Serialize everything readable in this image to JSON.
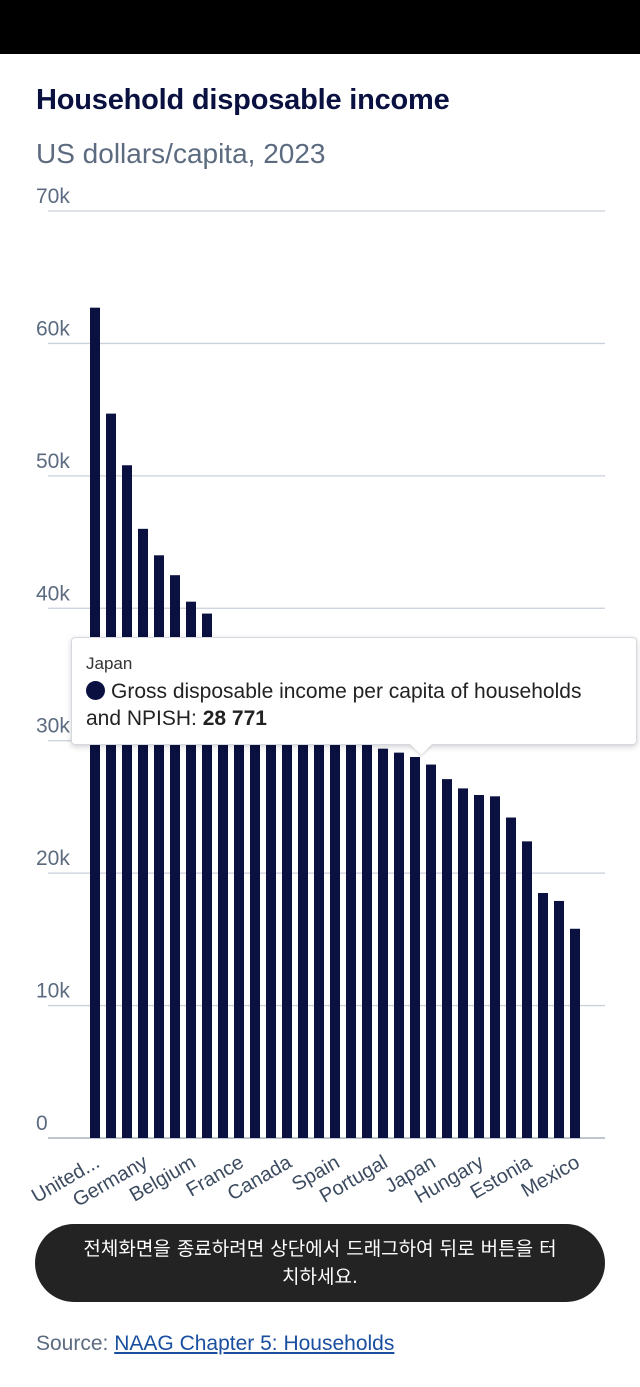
{
  "page": {
    "title": "Household disposable income",
    "subtitle": "US dollars/capita, 2023"
  },
  "chart_data": {
    "type": "bar",
    "title": "Household disposable income",
    "subtitle": "US dollars/capita, 2023",
    "xlabel": "",
    "ylabel": "",
    "ylim": [
      0,
      70000
    ],
    "yticks": [
      0,
      10000,
      20000,
      30000,
      40000,
      50000,
      60000,
      70000
    ],
    "ytick_labels": [
      "0",
      "10k",
      "20k",
      "30k",
      "40k",
      "50k",
      "60k",
      "70k"
    ],
    "grid": true,
    "legend": "none",
    "bar_color": "#0a1140",
    "x_tick_labels": [
      "United...",
      "Germany",
      "Belgium",
      "France",
      "Canada",
      "Spain",
      "Portugal",
      "Japan",
      "Hungary",
      "Estonia",
      "Mexico"
    ],
    "values": [
      62700,
      54700,
      50800,
      46000,
      44000,
      42500,
      40500,
      39600,
      37000,
      36000,
      35000,
      34000,
      33000,
      32000,
      31300,
      30500,
      30000,
      29700,
      29400,
      29100,
      28771,
      28200,
      27100,
      26400,
      25900,
      25800,
      24200,
      22400,
      18500,
      17900,
      15800
    ],
    "highlight": {
      "category": "Japan",
      "series": "Gross disposable income per capita of households and NPISH",
      "value_label": "28 771"
    }
  },
  "tooltip": {
    "country": "Japan",
    "series_label": "Gross disposable income per capita of households and NPISH:",
    "value": "28 771"
  },
  "toast": {
    "message": "전체화면을 종료하려면 상단에서 드래그하여 뒤로 버튼을 터치하세요."
  },
  "source": {
    "prefix": "Source: ",
    "link_text": "NAAG Chapter 5: Households"
  }
}
